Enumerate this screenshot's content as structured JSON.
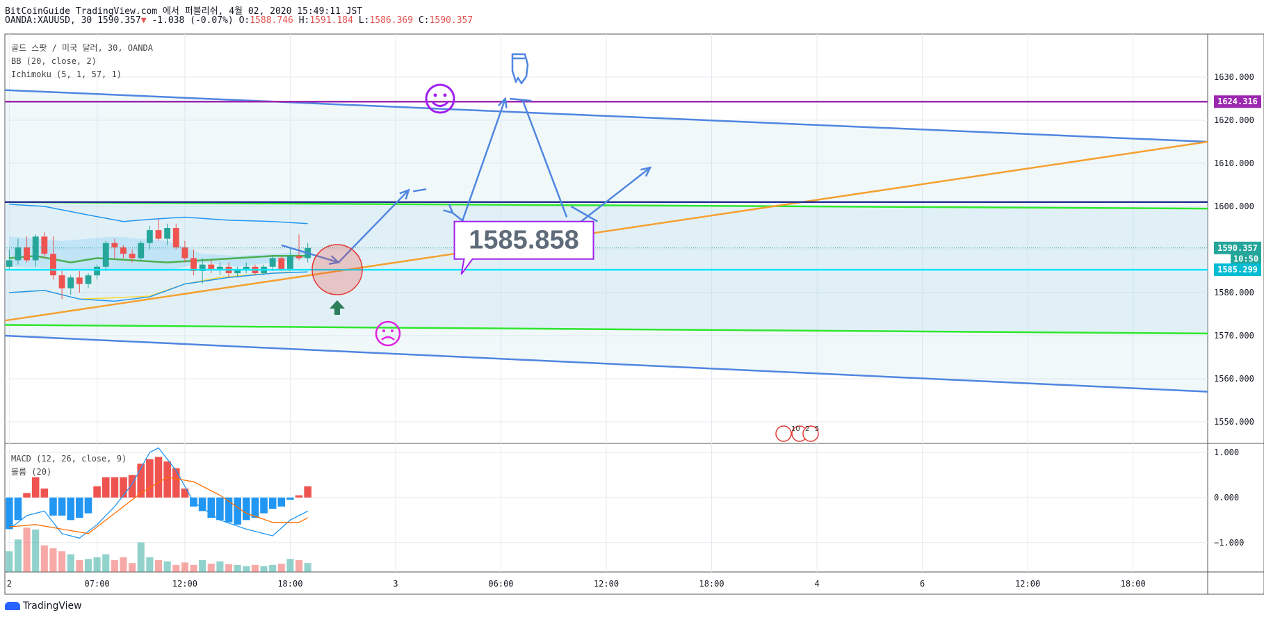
{
  "header": {
    "line1": "BitCoinGuide TradingView.com 에서 퍼블리쉬, 4월 02, 2020 15:49:11 JST",
    "symbol": "OANDA:XAUUSD, 30",
    "last": "1590.357",
    "arrow": "▼",
    "change": "-1.038 (-0.07%)",
    "o_label": "O:",
    "o_val": "1588.746",
    "h_label": "H:",
    "h_val": "1591.184",
    "l_label": "L:",
    "l_val": "1586.369",
    "c_label": "C:",
    "c_val": "1590.357"
  },
  "legend": {
    "title": "골드 스팟 / 미국 달러, 30, OANDA",
    "bb": "BB (20, close, 2)",
    "ichimoku": "Ichimoku (5, 1, 57, 1)",
    "macd": "MACD (12, 26, close, 9)",
    "volume": "볼륨 (20)"
  },
  "chart_data": {
    "type": "candlestick",
    "price_axis": {
      "ticks": [
        1550,
        1560,
        1570,
        1580,
        1590,
        1600,
        1610,
        1620,
        1630
      ],
      "range": [
        1545,
        1640
      ]
    },
    "price_tick_labels": [
      "1550.000",
      "1560.000",
      "1570.000",
      "1580.000",
      "1590.000",
      "1600.000",
      "1610.000",
      "1620.000",
      "1630.000"
    ],
    "price_badges": [
      {
        "text": "1624.316",
        "value": 1624.316,
        "color": "#9c27b0"
      },
      {
        "text": "1590.357",
        "value": 1590.357,
        "color": "#26a69a"
      },
      {
        "text": "10:50",
        "value": 1587.8,
        "color": "#26a69a"
      },
      {
        "text": "1585.299",
        "value": 1585.299,
        "color": "#00bcd4"
      }
    ],
    "time_axis": {
      "labels": [
        "2",
        "07:00",
        "12:00",
        "18:00",
        "3",
        "06:00",
        "12:00",
        "18:00",
        "4",
        "6",
        "12:00",
        "18:00"
      ],
      "bar_index": [
        0,
        10,
        20,
        32,
        44,
        56,
        68,
        80,
        92,
        104,
        116,
        128
      ],
      "total_bars": 137
    },
    "candles": [
      [
        1586.0,
        1590.0,
        1585.5,
        1587.5
      ],
      [
        1587.5,
        1592.5,
        1586.5,
        1590.5
      ],
      [
        1590.5,
        1593.0,
        1587.0,
        1587.5
      ],
      [
        1587.5,
        1593.5,
        1586.0,
        1593.0
      ],
      [
        1593.0,
        1594.0,
        1588.0,
        1589.0
      ],
      [
        1589.0,
        1593.0,
        1583.0,
        1584.0
      ],
      [
        1584.0,
        1585.0,
        1578.5,
        1581.0
      ],
      [
        1581.0,
        1584.0,
        1579.5,
        1583.5
      ],
      [
        1583.5,
        1585.0,
        1580.0,
        1582.0
      ],
      [
        1582.0,
        1584.5,
        1581.0,
        1584.0
      ],
      [
        1584.0,
        1586.5,
        1583.0,
        1586.0
      ],
      [
        1586.0,
        1592.0,
        1585.0,
        1591.5
      ],
      [
        1591.5,
        1592.5,
        1588.0,
        1590.5
      ],
      [
        1590.5,
        1591.0,
        1588.0,
        1589.0
      ],
      [
        1589.0,
        1590.0,
        1587.0,
        1588.0
      ],
      [
        1588.0,
        1592.0,
        1587.5,
        1591.5
      ],
      [
        1591.5,
        1595.5,
        1590.0,
        1594.5
      ],
      [
        1594.5,
        1597.0,
        1592.0,
        1592.5
      ],
      [
        1592.5,
        1596.0,
        1591.0,
        1595.0
      ],
      [
        1595.0,
        1596.0,
        1590.0,
        1590.5
      ],
      [
        1590.5,
        1592.0,
        1587.0,
        1588.0
      ],
      [
        1588.0,
        1590.0,
        1584.0,
        1585.0
      ],
      [
        1585.0,
        1588.0,
        1582.0,
        1586.5
      ],
      [
        1586.5,
        1587.5,
        1584.5,
        1585.5
      ],
      [
        1585.5,
        1587.0,
        1584.0,
        1586.0
      ],
      [
        1586.0,
        1587.0,
        1583.5,
        1584.5
      ],
      [
        1584.5,
        1586.0,
        1583.5,
        1585.5
      ],
      [
        1585.5,
        1587.0,
        1584.5,
        1586.0
      ],
      [
        1586.0,
        1586.5,
        1584.0,
        1584.5
      ],
      [
        1584.5,
        1586.5,
        1584.0,
        1586.0
      ],
      [
        1586.0,
        1588.5,
        1585.0,
        1588.0
      ],
      [
        1588.0,
        1588.5,
        1585.0,
        1585.5
      ],
      [
        1585.5,
        1590.5,
        1585.0,
        1588.5
      ],
      [
        1588.5,
        1593.5,
        1587.5,
        1588.0
      ],
      [
        1588.0,
        1591.5,
        1587.0,
        1590.357
      ]
    ],
    "bb_upper": [
      [
        0,
        1600.5
      ],
      [
        4,
        1600.0
      ],
      [
        9,
        1598.0
      ],
      [
        13,
        1596.5
      ],
      [
        16,
        1597.0
      ],
      [
        20,
        1597.5
      ],
      [
        25,
        1596.8
      ],
      [
        30,
        1596.5
      ],
      [
        34,
        1596.0
      ]
    ],
    "bb_lower": [
      [
        0,
        1580.0
      ],
      [
        4,
        1580.5
      ],
      [
        8,
        1578.5
      ],
      [
        12,
        1578.0
      ],
      [
        16,
        1579.0
      ],
      [
        20,
        1582.0
      ],
      [
        25,
        1583.5
      ],
      [
        30,
        1584.5
      ],
      [
        34,
        1584.8
      ]
    ],
    "bb_basis": [
      [
        0,
        1588.0
      ],
      [
        3,
        1588.5
      ],
      [
        7,
        1587.0
      ],
      [
        10,
        1588.0
      ],
      [
        14,
        1587.5
      ],
      [
        18,
        1587.0
      ],
      [
        22,
        1587.5
      ],
      [
        26,
        1588.0
      ],
      [
        30,
        1588.5
      ],
      [
        34,
        1588.5
      ]
    ],
    "annotations": {
      "price_box": "1585.858",
      "levels": [
        {
          "value": 1624.316,
          "color": "#9c27b0"
        },
        {
          "value": 1601.0,
          "color": "#283593"
        },
        {
          "value": 1585.299,
          "color": "#00e5ff"
        }
      ],
      "trend_lines": [
        {
          "p1": [
            0,
            1627.0
          ],
          "p2": [
            137,
            1615.0
          ],
          "color": "#4f86e0"
        },
        {
          "p1": [
            0,
            1570.0
          ],
          "p2": [
            137,
            1557.0
          ],
          "color": "#4f86e0"
        },
        {
          "p1": [
            0,
            1601.0
          ],
          "p2": [
            137,
            1599.5
          ],
          "color": "#2ee62e"
        },
        {
          "p1": [
            0,
            1572.5
          ],
          "p2": [
            137,
            1570.5
          ],
          "color": "#2ee62e"
        },
        {
          "p1": [
            0,
            1573.5
          ],
          "p2": [
            137,
            1615.0
          ],
          "color": "#f5a030"
        }
      ],
      "forecast_path": [
        [
          31,
          1591.0
        ],
        [
          37.5,
          1587.0
        ],
        [
          46,
          1603.5
        ],
        [
          47.5,
          1604.0
        ],
        [
          50.5,
          1598.5
        ],
        [
          53,
          1594.5
        ],
        [
          57,
          1625.0
        ],
        [
          59.5,
          1624.5
        ],
        [
          64,
          1600.0
        ],
        [
          67,
          1596.5
        ],
        [
          73,
          1609.0
        ]
      ]
    },
    "macd_axis": {
      "ticks": [
        -1,
        0,
        1
      ],
      "tick_labels": [
        "−1.000",
        "0.000",
        "1.000"
      ],
      "range": [
        -1.65,
        1.2
      ]
    },
    "macd_hist": [
      -0.7,
      -0.5,
      0.1,
      0.45,
      0.2,
      -0.4,
      -0.4,
      -0.5,
      -0.45,
      -0.35,
      0.25,
      0.45,
      0.45,
      0.45,
      0.5,
      0.75,
      0.85,
      0.9,
      0.8,
      0.65,
      0.2,
      -0.2,
      -0.3,
      -0.45,
      -0.5,
      -0.55,
      -0.6,
      -0.5,
      -0.45,
      -0.35,
      -0.25,
      -0.2,
      -0.05,
      0.05,
      0.25
    ],
    "macd_line": [
      [
        0,
        -0.7
      ],
      [
        2,
        -0.4
      ],
      [
        4,
        -0.3
      ],
      [
        6,
        -0.8
      ],
      [
        8,
        -0.9
      ],
      [
        10,
        -0.6
      ],
      [
        12,
        -0.2
      ],
      [
        14,
        0.3
      ],
      [
        16,
        1.0
      ],
      [
        17,
        1.1
      ],
      [
        19,
        0.6
      ],
      [
        21,
        -0.1
      ],
      [
        24,
        -0.5
      ],
      [
        27,
        -0.7
      ],
      [
        30,
        -0.85
      ],
      [
        32,
        -0.5
      ],
      [
        34,
        -0.3
      ]
    ],
    "signal_line": [
      [
        0,
        -0.65
      ],
      [
        3,
        -0.6
      ],
      [
        6,
        -0.7
      ],
      [
        9,
        -0.8
      ],
      [
        12,
        -0.35
      ],
      [
        15,
        0.1
      ],
      [
        18,
        0.45
      ],
      [
        21,
        0.35
      ],
      [
        24,
        0.05
      ],
      [
        27,
        -0.35
      ],
      [
        30,
        -0.55
      ],
      [
        33,
        -0.55
      ],
      [
        34,
        -0.45
      ]
    ],
    "volume": [
      0.35,
      0.55,
      0.75,
      0.72,
      0.45,
      0.4,
      0.35,
      0.3,
      0.2,
      0.22,
      0.25,
      0.3,
      0.2,
      0.25,
      0.15,
      0.5,
      0.25,
      0.2,
      0.18,
      0.12,
      0.16,
      0.12,
      0.2,
      0.14,
      0.18,
      0.13,
      0.12,
      0.1,
      0.12,
      0.1,
      0.12,
      0.14,
      0.22,
      0.2,
      0.15
    ]
  },
  "footer": {
    "brand": "TradingView"
  }
}
